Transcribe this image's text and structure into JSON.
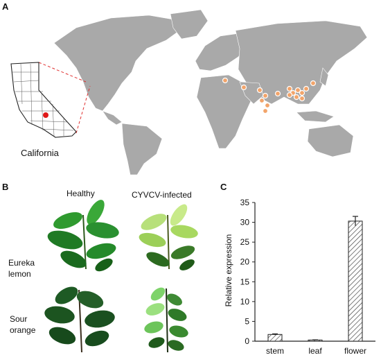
{
  "figure": {
    "panel_a": {
      "letter": "A",
      "inset_label": "California",
      "colors": {
        "land": "#a9a9a9",
        "site": "#f2a46a",
        "california_site": "#e01a1a",
        "connector": "#e03030"
      }
    },
    "panel_b": {
      "letter": "B",
      "col_headers": [
        "Healthy",
        "CYVCV-infected"
      ],
      "row_labels": [
        [
          "Eureka",
          "lemon"
        ],
        [
          "Sour",
          "orange"
        ]
      ]
    },
    "panel_c": {
      "letter": "C"
    }
  },
  "chart_data": {
    "type": "bar",
    "categories": [
      "stem",
      "leaf",
      "flower"
    ],
    "values": [
      1.7,
      0.3,
      30.3
    ],
    "errors": [
      0.15,
      0.05,
      1.2
    ],
    "ylabel": "Relative expression",
    "xlabel": "",
    "ylim": [
      0,
      35
    ],
    "yticks": [
      0,
      5,
      10,
      15,
      20,
      25,
      30,
      35
    ],
    "bar_fill": "hatched"
  }
}
